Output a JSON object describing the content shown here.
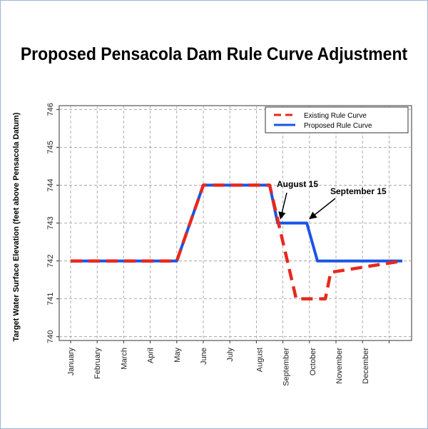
{
  "chart_data": {
    "type": "line",
    "title": "Proposed Pensacola Dam Rule Curve Adjustment",
    "ylabel": "Target Water Surface Elevation (feet above Pensacola Datum)",
    "xlabel": "",
    "categories": [
      "January",
      "February",
      "March",
      "April",
      "May",
      "June",
      "July",
      "August",
      "September",
      "October",
      "November",
      "December"
    ],
    "ylim": [
      739.9,
      746.1
    ],
    "yticks": [
      740,
      741,
      742,
      743,
      744,
      745,
      746
    ],
    "grid": true,
    "legend_position": "top-right",
    "series": [
      {
        "name": "Existing Rule Curve",
        "color": "#e8281e",
        "style": "dashed",
        "points": [
          [
            0.0,
            742
          ],
          [
            4.0,
            742
          ],
          [
            5.0,
            744
          ],
          [
            7.5,
            744
          ],
          [
            8.5,
            741
          ],
          [
            9.6,
            741
          ],
          [
            9.8,
            741.7
          ],
          [
            12.5,
            742
          ]
        ]
      },
      {
        "name": "Proposed Rule Curve",
        "color": "#1a54e6",
        "style": "solid",
        "points": [
          [
            0.0,
            742
          ],
          [
            4.0,
            742
          ],
          [
            5.0,
            744
          ],
          [
            7.5,
            744
          ],
          [
            7.8,
            743
          ],
          [
            8.9,
            743
          ],
          [
            9.3,
            742
          ],
          [
            12.5,
            742
          ]
        ]
      }
    ],
    "annotations": [
      {
        "text": "August 15",
        "x": 7.8,
        "y": 743
      },
      {
        "text": "September 15",
        "x": 8.9,
        "y": 743
      }
    ]
  }
}
